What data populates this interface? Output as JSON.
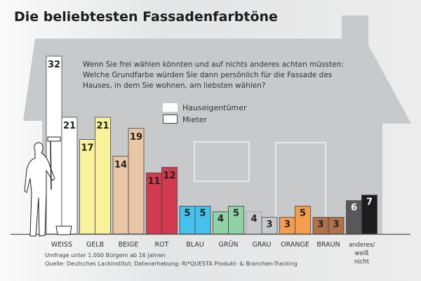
{
  "title": "Die beliebtesten Fassadenfarbtöne",
  "question": [
    "Wenn Sie frei wählen könnten und auf nichts anderes achten müssten:",
    "Welche Grundfarbe würden Sie dann persönlich für die Fassade des",
    "Hauses, in dem Sie wohnen, am liebsten wählen?"
  ],
  "footnote": [
    "Umfrage unter 1.000 Bürgern ab 16 Jahren",
    "Quelle: Deutsches Lackinstitut; Datenerhebung:  Ri*QUESTA Produkt- & Branchen-Tracking"
  ],
  "chart_data": {
    "type": "bar",
    "title": "Die beliebtesten Fassadenfarbtöne",
    "categories": [
      "WEISS",
      "GELB",
      "BEIGE",
      "ROT",
      "BLAU",
      "GRÜN",
      "GRAU",
      "ORANGE",
      "BRAUN",
      "anderes/ weiß nicht"
    ],
    "series": [
      {
        "name": "Hauseigentümer",
        "values": [
          32,
          17,
          14,
          11,
          5,
          4,
          4,
          3,
          3,
          6
        ]
      },
      {
        "name": "Mieter",
        "values": [
          21,
          21,
          19,
          12,
          5,
          5,
          3,
          5,
          3,
          7
        ]
      }
    ],
    "colors": [
      "#ffffff",
      "#fbf39c",
      "#e9c6a6",
      "#d13a4f",
      "#45c1ec",
      "#8fd2a5",
      "#c8c9cb",
      "#f59d4f",
      "#b0704a",
      [
        "#57585a",
        "#1d1b1c"
      ]
    ],
    "legend": "top-center",
    "ylim": [
      0,
      32
    ],
    "grid": false
  }
}
